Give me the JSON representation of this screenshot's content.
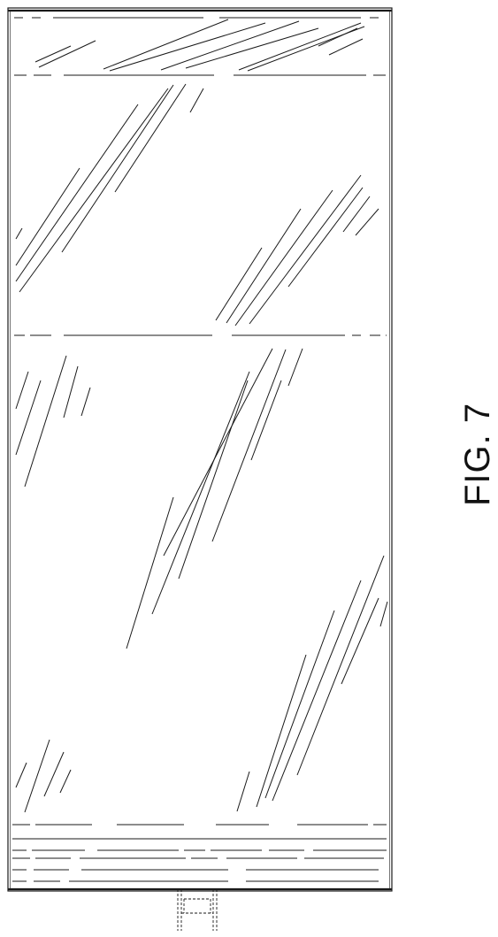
{
  "figure": {
    "label": "FIG. 7"
  },
  "colors": {
    "line": "#1a1a1a",
    "background": "#ffffff"
  }
}
